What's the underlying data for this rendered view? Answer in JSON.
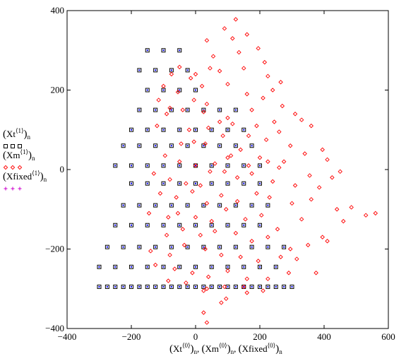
{
  "chart_data": {
    "type": "scatter",
    "xlim": [
      -400,
      600
    ],
    "ylim": [
      -400,
      400
    ],
    "x_ticks": [
      -400,
      -200,
      0,
      200,
      400,
      600
    ],
    "y_ticks": [
      -400,
      -200,
      0,
      200,
      400
    ],
    "x_tick_labels": [
      "−400",
      "−200",
      "0",
      "200",
      "400",
      "600"
    ],
    "y_tick_labels": [
      "−400",
      "−200",
      "0",
      "200",
      "400"
    ],
    "grid": false,
    "legend_position": "left",
    "xlabel": {
      "terms": [
        {
          "var": "Xt",
          "sup": "⟨0⟩",
          "sub": "n"
        },
        {
          "var": "Xm",
          "sup": "⟨0⟩",
          "sub": "n"
        },
        {
          "var": "Xfixed",
          "sup": "⟨0⟩",
          "sub": "n"
        }
      ]
    },
    "series": [
      {
        "name": "(Xt⟨1⟩)n",
        "var": "Xt",
        "sup": "⟨1⟩",
        "sub": "n",
        "marker": "square",
        "color": "#000000",
        "x": [
          -150,
          -100,
          -50,
          -175,
          -125,
          -75,
          -25,
          -150,
          -100,
          -50,
          0,
          -175,
          -125,
          -75,
          -25,
          25,
          75,
          125,
          -200,
          -150,
          -100,
          -50,
          0,
          50,
          100,
          150,
          -225,
          -175,
          -125,
          -75,
          -25,
          25,
          75,
          125,
          175,
          -250,
          -200,
          -150,
          -100,
          -50,
          0,
          50,
          100,
          150,
          200,
          -200,
          -150,
          -100,
          -50,
          0,
          50,
          100,
          150,
          200,
          -225,
          -175,
          -125,
          -75,
          -25,
          25,
          75,
          125,
          175,
          225,
          -250,
          -200,
          -150,
          -100,
          -50,
          0,
          50,
          100,
          150,
          200,
          -275,
          -225,
          -175,
          -125,
          -75,
          -25,
          25,
          75,
          125,
          175,
          225,
          275,
          -300,
          -250,
          -200,
          -150,
          -100,
          -50,
          0,
          50,
          100,
          150,
          200,
          250,
          -275,
          -225,
          -175,
          -125,
          -75,
          -25,
          25,
          75,
          125,
          175,
          225,
          275,
          -300,
          -250,
          -200,
          -150,
          -100,
          -50,
          0,
          50,
          100,
          150,
          200,
          250,
          300
        ],
        "y": [
          300,
          300,
          300,
          250,
          250,
          250,
          250,
          200,
          200,
          200,
          200,
          150,
          150,
          150,
          150,
          150,
          150,
          150,
          100,
          100,
          100,
          100,
          100,
          100,
          100,
          100,
          60,
          60,
          60,
          60,
          60,
          60,
          60,
          60,
          60,
          10,
          10,
          10,
          10,
          10,
          10,
          10,
          10,
          10,
          10,
          -35,
          -35,
          -35,
          -35,
          -35,
          -35,
          -35,
          -35,
          -35,
          -90,
          -90,
          -90,
          -90,
          -90,
          -90,
          -90,
          -90,
          -90,
          -90,
          -140,
          -140,
          -140,
          -140,
          -140,
          -140,
          -140,
          -140,
          -140,
          -140,
          -195,
          -195,
          -195,
          -195,
          -195,
          -195,
          -195,
          -195,
          -195,
          -195,
          -195,
          -195,
          -245,
          -245,
          -245,
          -245,
          -245,
          -245,
          -245,
          -245,
          -245,
          -245,
          -245,
          -245,
          -295,
          -295,
          -295,
          -295,
          -295,
          -295,
          -295,
          -295,
          -295,
          -295,
          -295,
          -295,
          -295,
          -295,
          -295,
          -295,
          -295,
          -295,
          -295,
          -295,
          -295,
          -295,
          -295,
          -295,
          -295
        ]
      },
      {
        "name": "(Xm⟨1⟩)n",
        "var": "Xm",
        "sup": "⟨1⟩",
        "sub": "n",
        "marker": "dot",
        "color": "#0000ff",
        "x": [
          -150,
          -100,
          -50,
          -175,
          -125,
          -75,
          -25,
          -150,
          -100,
          -50,
          0,
          -175,
          -125,
          -75,
          -25,
          25,
          75,
          125,
          -200,
          -150,
          -100,
          -50,
          0,
          50,
          100,
          150,
          -225,
          -175,
          -125,
          -75,
          -25,
          25,
          75,
          125,
          175,
          -250,
          -200,
          -150,
          -100,
          -50,
          0,
          50,
          100,
          150,
          200,
          -200,
          -150,
          -100,
          -50,
          0,
          50,
          100,
          150,
          200,
          -225,
          -175,
          -125,
          -75,
          -25,
          25,
          75,
          125,
          175,
          225,
          -250,
          -200,
          -150,
          -100,
          -50,
          0,
          50,
          100,
          150,
          200,
          -275,
          -225,
          -175,
          -125,
          -75,
          -25,
          25,
          75,
          125,
          175,
          225,
          275,
          -300,
          -250,
          -200,
          -150,
          -100,
          -50,
          0,
          50,
          100,
          150,
          200,
          250,
          -275,
          -225,
          -175,
          -125,
          -75,
          -25,
          25,
          75,
          125,
          175,
          225,
          275,
          -300,
          -250,
          -200,
          -150,
          -100,
          -50,
          0,
          50,
          100,
          150,
          200,
          250,
          300
        ],
        "y": [
          300,
          300,
          300,
          250,
          250,
          250,
          250,
          200,
          200,
          200,
          200,
          150,
          150,
          150,
          150,
          150,
          150,
          150,
          100,
          100,
          100,
          100,
          100,
          100,
          100,
          100,
          60,
          60,
          60,
          60,
          60,
          60,
          60,
          60,
          60,
          10,
          10,
          10,
          10,
          10,
          10,
          10,
          10,
          10,
          10,
          -35,
          -35,
          -35,
          -35,
          -35,
          -35,
          -35,
          -35,
          -35,
          -90,
          -90,
          -90,
          -90,
          -90,
          -90,
          -90,
          -90,
          -90,
          -90,
          -140,
          -140,
          -140,
          -140,
          -140,
          -140,
          -140,
          -140,
          -140,
          -140,
          -195,
          -195,
          -195,
          -195,
          -195,
          -195,
          -195,
          -195,
          -195,
          -195,
          -195,
          -195,
          -245,
          -245,
          -245,
          -245,
          -245,
          -245,
          -245,
          -245,
          -245,
          -245,
          -245,
          -245,
          -295,
          -295,
          -295,
          -295,
          -295,
          -295,
          -295,
          -295,
          -295,
          -295,
          -295,
          -295,
          -295,
          -295,
          -295,
          -295,
          -295,
          -295,
          -295,
          -295,
          -295,
          -295,
          -295,
          -295,
          -295
        ]
      },
      {
        "name": "(Xfixed⟨1⟩)n",
        "var": "Xfixed",
        "sup": "⟨1⟩",
        "sub": "n",
        "marker": "plus",
        "color": "#cc00cc",
        "x": [],
        "y": []
      },
      {
        "name": "",
        "marker": "diamond",
        "color": "#ff0000",
        "x": [
          125,
          90,
          160,
          35,
          115,
          195,
          55,
          135,
          215,
          -50,
          0,
          45,
          75,
          150,
          225,
          265,
          240,
          -75,
          -15,
          20,
          100,
          160,
          210,
          270,
          310,
          -100,
          -55,
          -5,
          35,
          100,
          175,
          245,
          330,
          -115,
          -80,
          -40,
          25,
          75,
          115,
          190,
          260,
          360,
          -90,
          -20,
          40,
          85,
          165,
          220,
          295,
          395,
          -120,
          -45,
          -5,
          30,
          110,
          140,
          200,
          275,
          340,
          410,
          -95,
          -50,
          0,
          60,
          100,
          165,
          225,
          260,
          355,
          425,
          -130,
          -80,
          -30,
          15,
          45,
          90,
          130,
          175,
          240,
          310,
          385,
          450,
          -110,
          -60,
          -10,
          35,
          80,
          130,
          190,
          230,
          300,
          360,
          440,
          485,
          -145,
          -85,
          -55,
          0,
          50,
          95,
          155,
          205,
          255,
          330,
          395,
          460,
          530,
          560,
          -90,
          -40,
          15,
          60,
          125,
          175,
          225,
          295,
          350,
          410,
          -140,
          -80,
          -35,
          30,
          80,
          140,
          195,
          265,
          315,
          375,
          -125,
          -65,
          -10,
          40,
          100,
          160,
          225,
          290,
          -85,
          -30,
          25,
          90,
          150,
          210,
          35,
          95,
          160,
          25,
          80,
          35
        ],
        "y": [
          378,
          355,
          340,
          325,
          330,
          305,
          285,
          295,
          270,
          258,
          240,
          255,
          248,
          255,
          235,
          220,
          200,
          240,
          230,
          210,
          215,
          190,
          180,
          160,
          140,
          210,
          195,
          175,
          165,
          130,
          150,
          120,
          125,
          175,
          155,
          150,
          145,
          120,
          115,
          110,
          95,
          110,
          140,
          100,
          105,
          85,
          85,
          75,
          60,
          50,
          110,
          65,
          70,
          65,
          35,
          50,
          30,
          20,
          40,
          25,
          35,
          20,
          10,
          15,
          30,
          10,
          20,
          5,
          -15,
          -20,
          -10,
          -25,
          -35,
          -40,
          -5,
          -5,
          -20,
          -10,
          -30,
          -40,
          -45,
          -5,
          -60,
          -70,
          -55,
          -85,
          -65,
          -80,
          -60,
          -70,
          -85,
          -75,
          -100,
          -95,
          -110,
          -120,
          -110,
          -120,
          -130,
          -100,
          -125,
          -115,
          -150,
          -125,
          -170,
          -130,
          -115,
          -110,
          -165,
          -150,
          -165,
          -155,
          -160,
          -180,
          -170,
          -200,
          -190,
          -180,
          -205,
          -215,
          -190,
          -200,
          -215,
          -220,
          -230,
          -220,
          -225,
          -260,
          -240,
          -250,
          -260,
          -270,
          -255,
          -275,
          -275,
          -260,
          -280,
          -285,
          -305,
          -295,
          -295,
          -305,
          -300,
          -325,
          -310,
          -360,
          -335,
          -385
        ]
      }
    ]
  }
}
